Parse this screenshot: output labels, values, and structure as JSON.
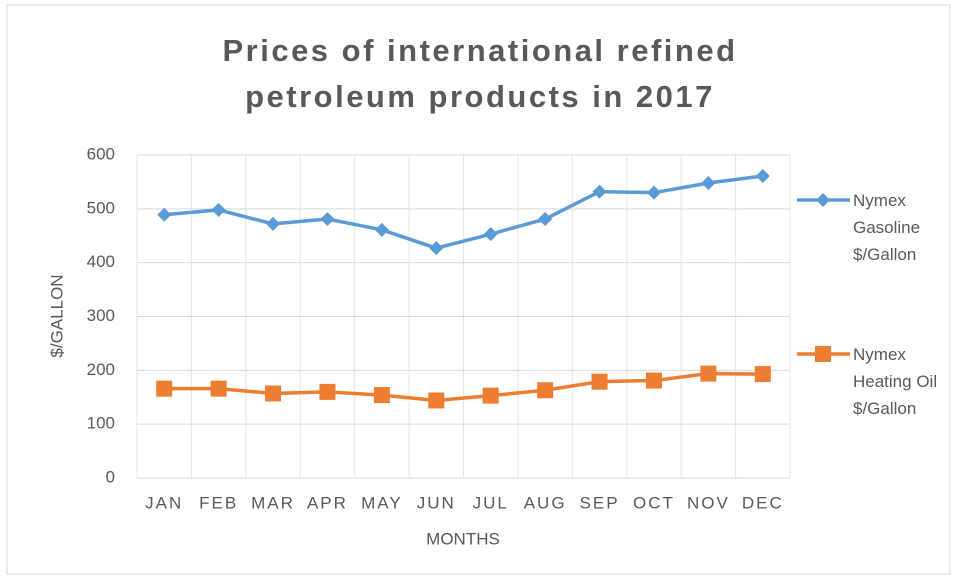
{
  "chart_data": {
    "type": "line",
    "title": "Prices of international refined petroleum products in 2017",
    "x_label": "MONTHS",
    "y_label": "$/GALLON",
    "categories": [
      "JAN",
      "FEB",
      "MAR",
      "APR",
      "MAY",
      "JUN",
      "JUL",
      "AUG",
      "SEP",
      "OCT",
      "NOV",
      "DEC"
    ],
    "series": [
      {
        "name": "Nymex Gasoline $/Gallon",
        "color": "#5b9bd5",
        "marker": "diamond",
        "values": [
          489,
          498,
          472,
          481,
          461,
          427,
          453,
          481,
          532,
          530,
          548,
          561
        ]
      },
      {
        "name": "Nymex Heating Oil $/Gallon",
        "color": "#ed7d31",
        "marker": "square",
        "values": [
          166,
          166,
          157,
          160,
          154,
          144,
          153,
          163,
          179,
          181,
          194,
          193
        ]
      }
    ],
    "ylim": [
      0,
      600
    ],
    "yticks": [
      0,
      100,
      200,
      300,
      400,
      500,
      600
    ],
    "grid": true,
    "legend": "right"
  }
}
